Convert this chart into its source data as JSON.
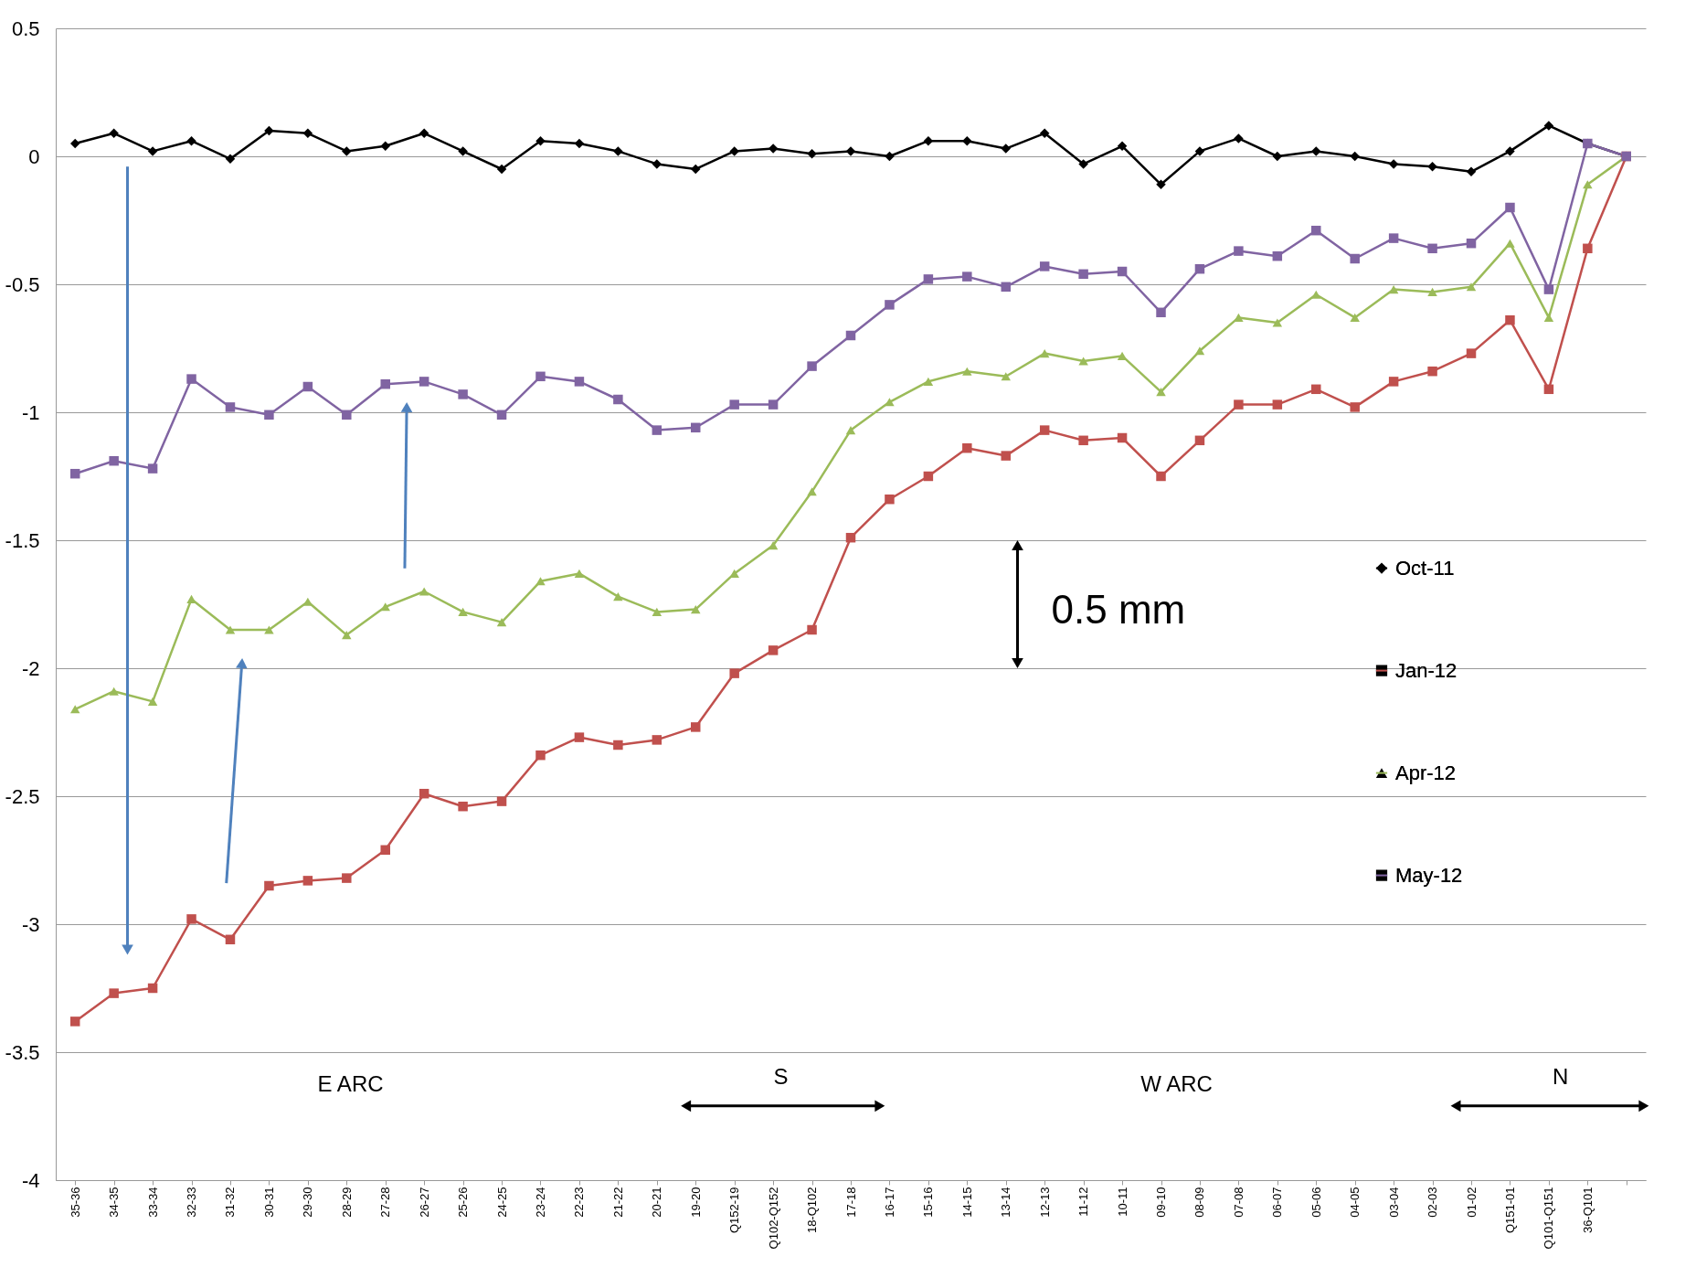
{
  "chart_data": {
    "type": "line",
    "categories": [
      "35-36",
      "34-35",
      "33-34",
      "32-33",
      "31-32",
      "30-31",
      "29-30",
      "28-29",
      "27-28",
      "26-27",
      "25-26",
      "24-25",
      "23-24",
      "22-23",
      "21-22",
      "20-21",
      "19-20",
      "Q152-19",
      "Q102-Q152",
      "18-Q102",
      "17-18",
      "16-17",
      "15-16",
      "14-15",
      "13-14",
      "12-13",
      "11-12",
      "10-11",
      "09-10",
      "08-09",
      "07-08",
      "06-07",
      "05-06",
      "04-05",
      "03-04",
      "02-03",
      "01-02",
      "Q151-01",
      "Q101-Q151",
      "36-Q101",
      null
    ],
    "series": [
      {
        "name": "Oct-11",
        "color": "#000000",
        "marker": "diamond",
        "values": [
          0.05,
          0.09,
          0.02,
          0.06,
          -0.01,
          0.1,
          0.09,
          0.02,
          0.04,
          0.09,
          0.02,
          -0.05,
          0.06,
          0.05,
          0.02,
          -0.03,
          -0.05,
          0.02,
          0.03,
          0.01,
          0.02,
          0,
          0.06,
          0.06,
          0.03,
          0.09,
          -0.03,
          0.04,
          -0.11,
          0.02,
          0.07,
          0,
          0.02,
          0,
          -0.03,
          -0.04,
          -0.06,
          0.02,
          0.12,
          0.05,
          0
        ]
      },
      {
        "name": "Jan-12",
        "color": "#c0504d",
        "marker": "square",
        "values": [
          -3.38,
          -3.27,
          -3.25,
          -2.98,
          -3.06,
          -2.85,
          -2.83,
          -2.82,
          -2.71,
          -2.49,
          -2.54,
          -2.52,
          -2.34,
          -2.27,
          -2.3,
          -2.28,
          -2.23,
          -2.02,
          -1.93,
          -1.85,
          -1.49,
          -1.34,
          -1.25,
          -1.14,
          -1.17,
          -1.07,
          -1.11,
          -1.1,
          -1.25,
          -1.11,
          -0.97,
          -0.97,
          -0.91,
          -0.98,
          -0.88,
          -0.84,
          -0.77,
          -0.64,
          -0.91,
          -0.36,
          0
        ]
      },
      {
        "name": "Apr-12",
        "color": "#9bbb59",
        "marker": "triangle",
        "values": [
          -2.16,
          -2.09,
          -2.13,
          -1.73,
          -1.85,
          -1.85,
          -1.74,
          -1.87,
          -1.76,
          -1.7,
          -1.78,
          -1.82,
          -1.66,
          -1.63,
          -1.72,
          -1.78,
          -1.77,
          -1.63,
          -1.52,
          -1.31,
          -1.07,
          -0.96,
          -0.88,
          -0.84,
          -0.86,
          -0.77,
          -0.8,
          -0.78,
          -0.92,
          -0.76,
          -0.63,
          -0.65,
          -0.54,
          -0.63,
          -0.52,
          -0.53,
          -0.51,
          -0.34,
          -0.63,
          -0.11,
          0
        ]
      },
      {
        "name": "May-12",
        "color": "#8064a2",
        "marker": "square",
        "values": [
          -1.24,
          -1.19,
          -1.22,
          -0.87,
          -0.98,
          -1.01,
          -0.9,
          -1.01,
          -0.89,
          -0.88,
          -0.93,
          -1.01,
          -0.86,
          -0.88,
          -0.95,
          -1.07,
          -1.06,
          -0.97,
          -0.97,
          -0.82,
          -0.7,
          -0.58,
          -0.48,
          -0.47,
          -0.51,
          -0.43,
          -0.46,
          -0.45,
          -0.61,
          -0.44,
          -0.37,
          -0.39,
          -0.29,
          -0.4,
          -0.32,
          -0.36,
          -0.34,
          -0.2,
          -0.52,
          0.05,
          0
        ]
      }
    ],
    "ylim": [
      -4,
      0.5
    ],
    "yticks": [
      -4,
      -3.5,
      -3,
      -2.5,
      -2,
      -1.5,
      -1,
      -0.5,
      0,
      0.5
    ],
    "grid": "y",
    "legend": "right",
    "line_style": "solid",
    "annotations": [
      "0.5 mm",
      "E ARC",
      "S",
      "W ARC",
      "N"
    ]
  }
}
